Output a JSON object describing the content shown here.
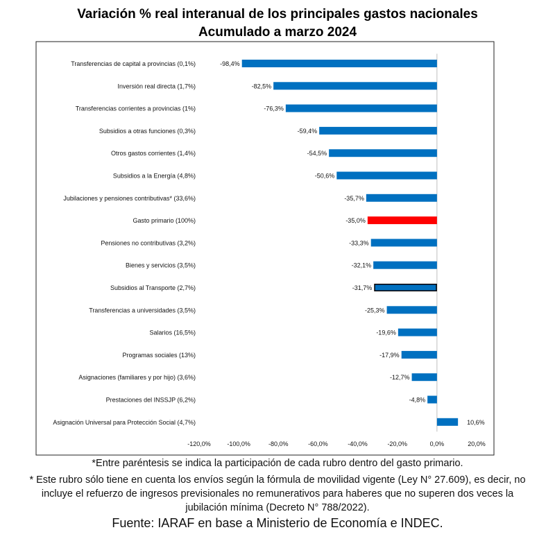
{
  "chart_data": {
    "type": "bar",
    "orientation": "horizontal",
    "title": "Variación % real interanual de los principales gastos nacionales",
    "subtitle": "Acumulado a marzo 2024",
    "categories": [
      "Transferencias de capital a provincias (0,1%)",
      "Inversión real directa (1,7%)",
      "Transferencias corrientes a provincias (1%)",
      "Subsidios a otras funciones (0,3%)",
      "Otros gastos corrientes (1,4%)",
      "Subsidios a la Energía (4,8%)",
      "Jubilaciones y pensiones contributivas* (33,6%)",
      "Gasto primario (100%)",
      "Pensiones no contributivas (3,2%)",
      "Bienes y servicios (3,5%)",
      "Subsidios al Transporte (2,7%)",
      "Transferencias a universidades (3,5%)",
      "Salarios (16,5%)",
      "Programas sociales (13%)",
      "Asignaciones (familiares y por hijo) (3,6%)",
      "Prestaciones del INSSJP (6,2%)",
      "Asignación Universal para Protección Social (4,7%)"
    ],
    "values": [
      -98.4,
      -82.5,
      -76.3,
      -59.4,
      -54.5,
      -50.6,
      -35.7,
      -35.0,
      -33.3,
      -32.1,
      -31.7,
      -25.3,
      -19.6,
      -17.9,
      -12.7,
      -4.8,
      10.6
    ],
    "value_labels": [
      "-98,4%",
      "-82,5%",
      "-76,3%",
      "-59,4%",
      "-54,5%",
      "-50,6%",
      "-35,7%",
      "-35,0%",
      "-33,3%",
      "-32,1%",
      "-31,7%",
      "-25,3%",
      "-19,6%",
      "-17,9%",
      "-12,7%",
      "-4,8%",
      "10,6%"
    ],
    "xlim": [
      -120,
      20
    ],
    "xticks": [
      -120,
      -100,
      -80,
      -60,
      -40,
      -20,
      0,
      20
    ],
    "xtick_labels": [
      "-120,0%",
      "-100,0%",
      "-80,0%",
      "-60,0%",
      "-40,0%",
      "-20,0%",
      "0,0%",
      "20,0%"
    ],
    "xlabel": "",
    "ylabel": "",
    "grid": false,
    "colors": {
      "default": "#0070C0",
      "highlight": "#FF0000",
      "outlined_bar_stroke": "#000000"
    },
    "highlight_index": 7,
    "outlined_index": 10
  },
  "notes": {
    "note1": "*Entre paréntesis se indica la participación de cada rubro dentro del gasto primario.",
    "note2": "* Este rubro sólo tiene en cuenta los envíos según la fórmula de movilidad vigente (Ley N° 27.609), es decir, no incluye el refuerzo de ingresos previsionales no remunerativos para haberes que no superen dos veces la jubilación mínima (Decreto N° 788/2022).",
    "source": "Fuente: IARAF en base a Ministerio de Economía e INDEC."
  }
}
